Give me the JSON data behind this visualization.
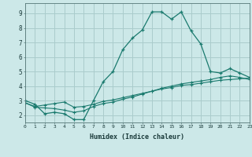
{
  "xlabel": "Humidex (Indice chaleur)",
  "bg_color": "#cce8e8",
  "grid_color": "#aacccc",
  "line_color": "#1a7a6e",
  "line1_x": [
    0,
    1,
    2,
    3,
    4,
    5,
    6,
    7,
    8,
    9,
    10,
    11,
    12,
    13,
    14,
    15,
    16,
    17,
    18,
    19,
    20,
    21,
    22,
    23
  ],
  "line1_y": [
    3.0,
    2.75,
    2.1,
    2.2,
    2.1,
    1.7,
    1.7,
    3.0,
    4.3,
    5.0,
    6.5,
    7.3,
    7.85,
    9.1,
    9.1,
    8.6,
    9.1,
    7.8,
    6.9,
    5.0,
    4.9,
    5.2,
    4.9,
    4.6
  ],
  "line2_x": [
    0,
    1,
    2,
    3,
    4,
    5,
    6,
    7,
    8,
    9,
    10,
    11,
    12,
    13,
    14,
    15,
    16,
    17,
    18,
    19,
    20,
    21,
    22,
    23
  ],
  "line2_y": [
    2.85,
    2.6,
    2.7,
    2.8,
    2.9,
    2.55,
    2.6,
    2.75,
    2.95,
    3.05,
    3.2,
    3.35,
    3.5,
    3.65,
    3.8,
    3.9,
    4.05,
    4.1,
    4.2,
    4.3,
    4.4,
    4.45,
    4.5,
    4.55
  ],
  "line3_x": [
    0,
    1,
    2,
    3,
    4,
    5,
    6,
    7,
    8,
    9,
    10,
    11,
    12,
    13,
    14,
    15,
    16,
    17,
    18,
    19,
    20,
    21,
    22,
    23
  ],
  "line3_y": [
    2.85,
    2.55,
    2.5,
    2.45,
    2.35,
    2.2,
    2.3,
    2.6,
    2.8,
    2.9,
    3.1,
    3.25,
    3.45,
    3.65,
    3.85,
    4.0,
    4.15,
    4.25,
    4.35,
    4.45,
    4.6,
    4.7,
    4.6,
    4.45
  ],
  "xlim": [
    0,
    23
  ],
  "ylim": [
    1.5,
    9.7
  ],
  "yticks": [
    2,
    3,
    4,
    5,
    6,
    7,
    8,
    9
  ],
  "xticks": [
    0,
    1,
    2,
    3,
    4,
    5,
    6,
    7,
    8,
    9,
    10,
    11,
    12,
    13,
    14,
    15,
    16,
    17,
    18,
    19,
    20,
    21,
    22,
    23
  ]
}
